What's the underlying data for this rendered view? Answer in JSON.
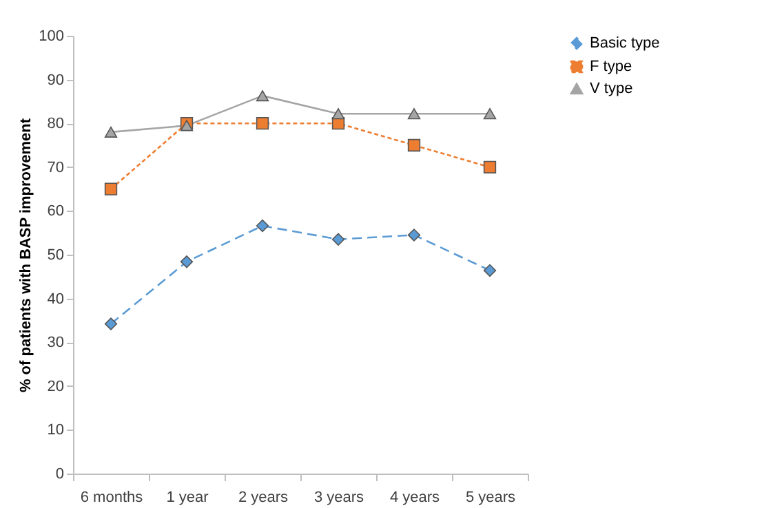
{
  "chart_data": {
    "type": "line",
    "ylabel": "% of patients with BASP improvement",
    "categories": [
      "6 months",
      "1 year",
      "2 years",
      "3 years",
      "4 years",
      "5 years"
    ],
    "series": [
      {
        "name": "Basic type",
        "color": "#5b9bd5",
        "marker": "diamond",
        "line_style": "dashed",
        "values": [
          34.2,
          48.4,
          56.6,
          53.5,
          54.5,
          46.4
        ]
      },
      {
        "name": "F type",
        "color": "#ed7d31",
        "marker": "square",
        "line_style": "dotted",
        "values": [
          65,
          80,
          80,
          80,
          75,
          70
        ]
      },
      {
        "name": "V type",
        "color": "#a5a5a5",
        "marker": "triangle",
        "line_style": "solid",
        "values": [
          78,
          79.5,
          86.3,
          82.2,
          82.2,
          82.2
        ]
      }
    ],
    "ylim": [
      0,
      100
    ],
    "yticks": [
      0,
      10,
      20,
      30,
      40,
      50,
      60,
      70,
      80,
      90,
      100
    ],
    "grid": false,
    "legend": "right"
  }
}
